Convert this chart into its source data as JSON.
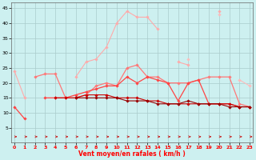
{
  "xlabel": "Vent moyen/en rafales ( km/h )",
  "bg_color": "#cdf0f0",
  "x": [
    0,
    1,
    2,
    3,
    4,
    5,
    6,
    7,
    8,
    9,
    10,
    11,
    12,
    13,
    14,
    15,
    16,
    17,
    18,
    19,
    20,
    21,
    22,
    23
  ],
  "series": [
    {
      "color": "#ffaaaa",
      "lw": 0.8,
      "y": [
        24,
        15,
        null,
        null,
        null,
        null,
        22,
        27,
        28,
        32,
        40,
        44,
        42,
        42,
        38,
        null,
        27,
        26,
        null,
        null,
        44,
        null,
        null,
        null
      ]
    },
    {
      "color": "#ffbbbb",
      "lw": 0.8,
      "y": [
        null,
        null,
        null,
        null,
        null,
        null,
        null,
        null,
        null,
        null,
        null,
        null,
        null,
        null,
        null,
        null,
        null,
        28,
        null,
        null,
        43,
        null,
        21,
        19
      ]
    },
    {
      "color": "#ff7777",
      "lw": 0.9,
      "y": [
        null,
        null,
        22,
        23,
        23,
        15,
        15,
        16,
        19,
        20,
        19,
        25,
        26,
        22,
        22,
        20,
        20,
        20,
        21,
        22,
        22,
        22,
        13,
        12
      ]
    },
    {
      "color": "#ff4444",
      "lw": 0.9,
      "y": [
        12,
        8,
        null,
        15,
        15,
        15,
        16,
        17,
        18,
        19,
        19,
        22,
        20,
        22,
        21,
        20,
        14,
        20,
        21,
        13,
        13,
        13,
        12,
        12
      ]
    },
    {
      "color": "#cc0000",
      "lw": 0.8,
      "y": [
        null,
        null,
        null,
        null,
        15,
        15,
        15,
        16,
        16,
        16,
        15,
        15,
        15,
        14,
        14,
        13,
        13,
        13,
        13,
        13,
        13,
        13,
        12,
        12
      ]
    },
    {
      "color": "#990000",
      "lw": 0.8,
      "y": [
        null,
        null,
        null,
        null,
        null,
        null,
        15,
        15,
        15,
        15,
        15,
        14,
        14,
        14,
        13,
        13,
        13,
        14,
        13,
        13,
        13,
        12,
        12,
        12
      ]
    }
  ],
  "ylim": [
    0,
    47
  ],
  "xlim": [
    -0.3,
    23.3
  ],
  "yticks": [
    5,
    10,
    15,
    20,
    25,
    30,
    35,
    40,
    45
  ],
  "xticks": [
    0,
    1,
    2,
    3,
    4,
    5,
    6,
    7,
    8,
    9,
    10,
    11,
    12,
    13,
    14,
    15,
    16,
    17,
    18,
    19,
    20,
    21,
    22,
    23
  ]
}
